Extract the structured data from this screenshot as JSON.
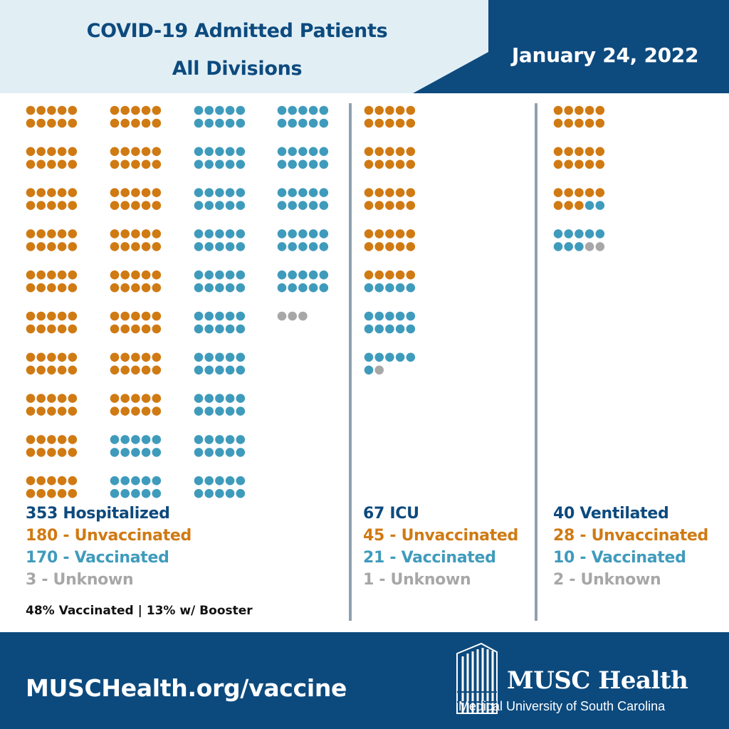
{
  "header": {
    "title_line1": "COVID-19 Admitted Patients",
    "title_line2": "All Divisions",
    "date": "January 24, 2022"
  },
  "colors": {
    "navy": "#0d4a7e",
    "unvaccinated": "#d07a13",
    "vaccinated": "#3f9bbc",
    "unknown": "#a7a7a7",
    "header_light": "#e1eff5"
  },
  "chart_data": {
    "type": "pictogram",
    "unit": "one dot per patient",
    "series": [
      {
        "name": "Unvaccinated",
        "color": "#d07a13"
      },
      {
        "name": "Vaccinated",
        "color": "#3f9bbc"
      },
      {
        "name": "Unknown",
        "color": "#a7a7a7"
      }
    ],
    "groups": [
      {
        "total": 353,
        "unvaccinated": 180,
        "vaccinated": 170,
        "unknown": 3
      },
      {
        "total": 67,
        "unvaccinated": 45,
        "vaccinated": 21,
        "unknown": 1
      },
      {
        "total": 40,
        "unvaccinated": 28,
        "vaccinated": 10,
        "unknown": 2
      }
    ]
  },
  "stats": {
    "hospitalized": {
      "total": "353 Hospitalized",
      "unvaccinated": "180 - Unvaccinated",
      "vaccinated": "170 - Vaccinated",
      "unknown": "3 - Unknown"
    },
    "icu": {
      "total": "67 ICU",
      "unvaccinated": "45 - Unvaccinated",
      "vaccinated": "21 - Vaccinated",
      "unknown": "1 - Unknown"
    },
    "ventilated": {
      "total": "40 Ventilated",
      "unvaccinated": "28 - Unvaccinated",
      "vaccinated": "10 - Vaccinated",
      "unknown": "2 - Unknown"
    }
  },
  "summary": "48% Vaccinated | 13% w/ Booster",
  "footer": {
    "url": "MUSCHealth.org/vaccine",
    "logo_name": "MUSC Health",
    "logo_subtitle": "Medical University of South Carolina"
  }
}
